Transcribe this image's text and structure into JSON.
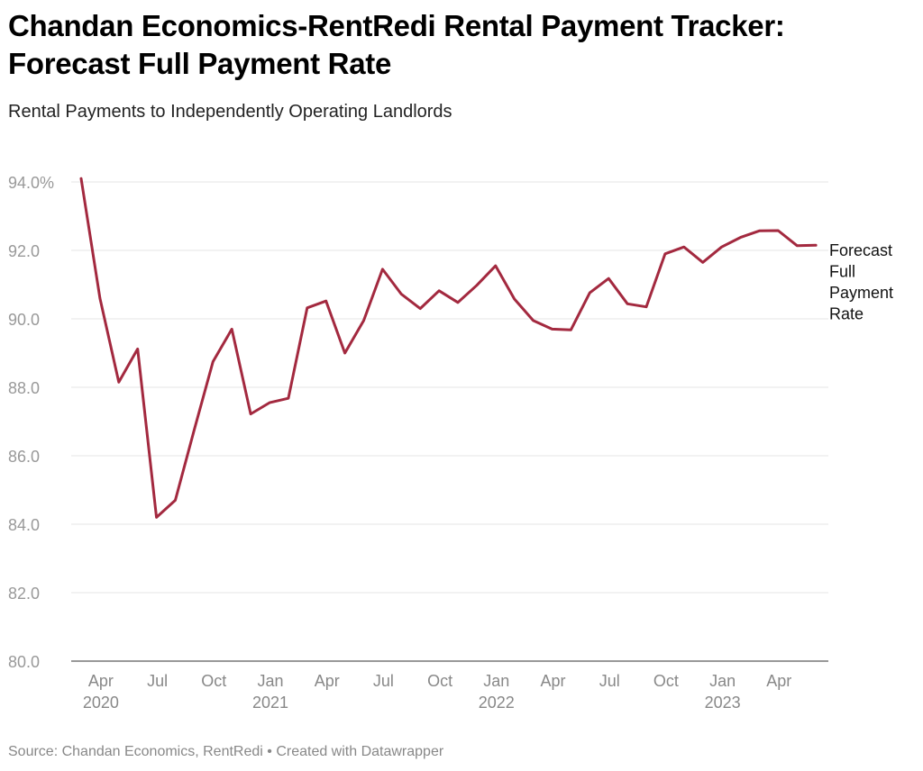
{
  "title_lines": [
    "Chandan Economics-RentRedi Rental Payment Tracker:",
    "Forecast Full Payment Rate"
  ],
  "subtitle": "Rental Payments to Independently Operating Landlords",
  "source": "Source: Chandan Economics, RentRedi • Created with Datawrapper",
  "colors": {
    "line": "#a3293f",
    "grid": "#e5e5e5",
    "tick": "#999999"
  },
  "chart_data": {
    "type": "line",
    "title": "Chandan Economics-RentRedi Rental Payment Tracker: Forecast Full Payment Rate",
    "ylim": [
      80,
      94
    ],
    "y_ticks": [
      {
        "value": 94,
        "label": "94.0%"
      },
      {
        "value": 92,
        "label": "92.0"
      },
      {
        "value": 90,
        "label": "90.0"
      },
      {
        "value": 88,
        "label": "88.0"
      },
      {
        "value": 86,
        "label": "86.0"
      },
      {
        "value": 84,
        "label": "84.0"
      },
      {
        "value": 82,
        "label": "82.0"
      },
      {
        "value": 80,
        "label": "80.0"
      }
    ],
    "x_ticks": [
      {
        "month_index": 1,
        "label": "Apr",
        "year": "2020"
      },
      {
        "month_index": 4,
        "label": "Jul",
        "year": ""
      },
      {
        "month_index": 7,
        "label": "Oct",
        "year": ""
      },
      {
        "month_index": 10,
        "label": "Jan",
        "year": "2021"
      },
      {
        "month_index": 13,
        "label": "Apr",
        "year": ""
      },
      {
        "month_index": 16,
        "label": "Jul",
        "year": ""
      },
      {
        "month_index": 19,
        "label": "Oct",
        "year": ""
      },
      {
        "month_index": 22,
        "label": "Jan",
        "year": "2022"
      },
      {
        "month_index": 25,
        "label": "Apr",
        "year": ""
      },
      {
        "month_index": 28,
        "label": "Jul",
        "year": ""
      },
      {
        "month_index": 31,
        "label": "Oct",
        "year": ""
      },
      {
        "month_index": 34,
        "label": "Jan",
        "year": "2023"
      },
      {
        "month_index": 37,
        "label": "Apr",
        "year": ""
      }
    ],
    "series": [
      {
        "name": "Forecast Full Payment Rate",
        "label_lines": [
          "Forecast",
          "Full",
          "Payment",
          "Rate"
        ],
        "start": "Mar 2020",
        "values": [
          94.1,
          90.6,
          88.15,
          89.12,
          84.2,
          84.7,
          86.75,
          88.75,
          89.7,
          87.22,
          87.55,
          87.68,
          90.32,
          90.52,
          89.0,
          89.95,
          91.45,
          90.72,
          90.3,
          90.82,
          90.48,
          90.98,
          91.55,
          90.58,
          89.95,
          89.7,
          89.68,
          90.76,
          91.18,
          90.44,
          90.35,
          91.9,
          92.1,
          91.65,
          92.1,
          92.38,
          92.57,
          92.58,
          92.14,
          92.15
        ]
      }
    ]
  }
}
